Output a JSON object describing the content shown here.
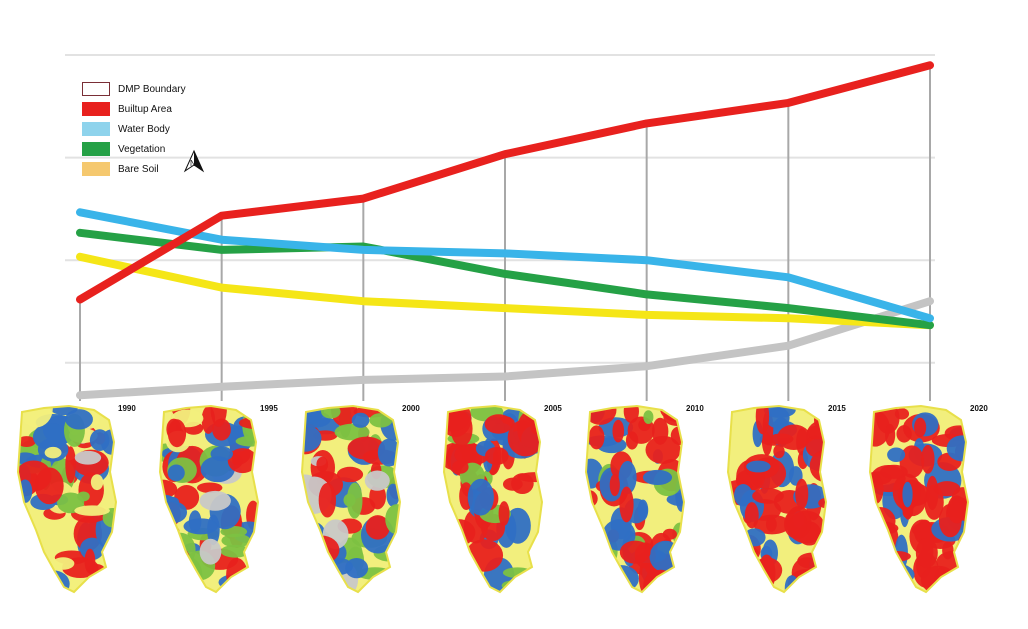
{
  "chart_data": {
    "type": "line",
    "x": [
      1990,
      1995,
      2000,
      2005,
      2010,
      2015,
      2020
    ],
    "series": [
      {
        "name": "Builtup Area",
        "color": "#e8211e",
        "values": [
          28.5,
          53,
          58,
          71,
          80,
          86,
          97
        ]
      },
      {
        "name": "Water Body",
        "color": "#39b4e9",
        "values": [
          54,
          46,
          43,
          42,
          40,
          35,
          23
        ]
      },
      {
        "name": "Vegetation",
        "color": "#25a146",
        "values": [
          48,
          43,
          44,
          36,
          30,
          26,
          21
        ]
      },
      {
        "name": "Bare Soil",
        "color": "#f5e617",
        "values": [
          41,
          32,
          28,
          26,
          24,
          23,
          21
        ]
      },
      {
        "name": "",
        "color": "#c4c4c4",
        "values": [
          0.5,
          3,
          5,
          6,
          9,
          15,
          28
        ]
      }
    ],
    "ylim": [
      0,
      100
    ],
    "grid": true
  },
  "legend": [
    {
      "label": "DMP Boundary",
      "color": "#ffffff",
      "border": "#7a2e36",
      "key": "dmp"
    },
    {
      "label": "Builtup Area",
      "color": "#e8211e",
      "key": "builtup"
    },
    {
      "label": "Water Body",
      "color": "#8ed3ec",
      "key": "water"
    },
    {
      "label": "Vegetation",
      "color": "#25a146",
      "key": "vegetation"
    },
    {
      "label": "Bare Soil",
      "color": "#f5c86e",
      "key": "baresoil"
    }
  ],
  "north_arrow_icon": "north-arrow-icon",
  "maps": [
    {
      "year": "1990"
    },
    {
      "year": "1995"
    },
    {
      "year": "2000"
    },
    {
      "year": "2005"
    },
    {
      "year": "2010"
    },
    {
      "year": "2015"
    },
    {
      "year": "2020"
    }
  ],
  "map_colors": {
    "builtup": "#e8211e",
    "water": "#2f6fc4",
    "vegetation": "#7cc142",
    "baresoil": "#f2ef7d",
    "other": "#c8c8c8",
    "boundary": "#e8e04a"
  }
}
